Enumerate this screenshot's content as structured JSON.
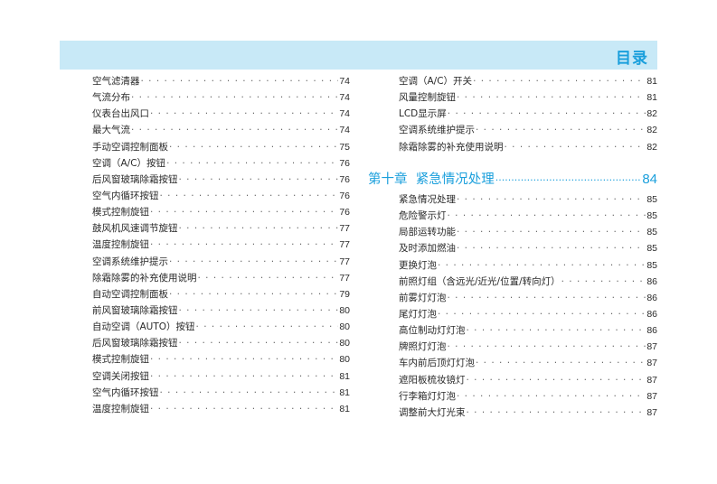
{
  "header": {
    "title": "目录",
    "band_color": "#c8e9f7",
    "accent": "#1a9fdc"
  },
  "left": [
    {
      "label": "空气滤清器",
      "page": "74"
    },
    {
      "label": "气流分布",
      "page": "74"
    },
    {
      "label": "仪表台出风口",
      "page": "74"
    },
    {
      "label": "最大气流",
      "page": "74"
    },
    {
      "label": "手动空调控制面板",
      "page": "75"
    },
    {
      "label": "空调（A/C）按钮",
      "page": "76"
    },
    {
      "label": "后风窗玻璃除霜按钮",
      "page": "76"
    },
    {
      "label": "空气内循环按钮",
      "page": "76"
    },
    {
      "label": "模式控制旋钮",
      "page": "76"
    },
    {
      "label": "鼓风机风速调节旋钮",
      "page": "77"
    },
    {
      "label": "温度控制旋钮",
      "page": "77"
    },
    {
      "label": "空调系统维护提示",
      "page": "77"
    },
    {
      "label": "除霜除雾的补充使用说明",
      "page": "77"
    },
    {
      "label": "自动空调控制面板",
      "page": "79"
    },
    {
      "label": "前风窗玻璃除霜按钮",
      "page": "80"
    },
    {
      "label": "自动空调（AUTO）按钮",
      "page": "80"
    },
    {
      "label": "后风窗玻璃除霜按钮",
      "page": "80"
    },
    {
      "label": "模式控制旋钮",
      "page": "80"
    },
    {
      "label": "空调关闭按钮",
      "page": "81"
    },
    {
      "label": "空气内循环按钮",
      "page": "81"
    },
    {
      "label": "温度控制旋钮",
      "page": "81"
    }
  ],
  "right_top": [
    {
      "label": "空调（A/C）开关",
      "page": "81"
    },
    {
      "label": "风量控制旋钮",
      "page": "81"
    },
    {
      "label": "LCD显示屏",
      "page": "82"
    },
    {
      "label": "空调系统维护提示",
      "page": "82"
    },
    {
      "label": "除霜除雾的补充使用说明",
      "page": "82"
    }
  ],
  "chapter": {
    "label": "第十章  紧急情况处理",
    "page": "84"
  },
  "right_bottom": [
    {
      "label": "紧急情况处理",
      "page": "85"
    },
    {
      "label": "危险警示灯",
      "page": "85"
    },
    {
      "label": "局部运转功能",
      "page": "85"
    },
    {
      "label": "及时添加燃油",
      "page": "85"
    },
    {
      "label": "更换灯泡",
      "page": "85"
    },
    {
      "label": "前照灯组（含远光/近光/位置/转向灯）",
      "page": "86"
    },
    {
      "label": "前雾灯灯泡",
      "page": "86"
    },
    {
      "label": "尾灯灯泡",
      "page": "86"
    },
    {
      "label": "高位制动灯灯泡",
      "page": "86"
    },
    {
      "label": "牌照灯灯泡",
      "page": "87"
    },
    {
      "label": "车内前后顶灯灯泡",
      "page": "87"
    },
    {
      "label": "遮阳板梳妆镜灯",
      "page": "87"
    },
    {
      "label": "行李箱灯灯泡",
      "page": "87"
    },
    {
      "label": "调整前大灯光束",
      "page": "87"
    }
  ]
}
